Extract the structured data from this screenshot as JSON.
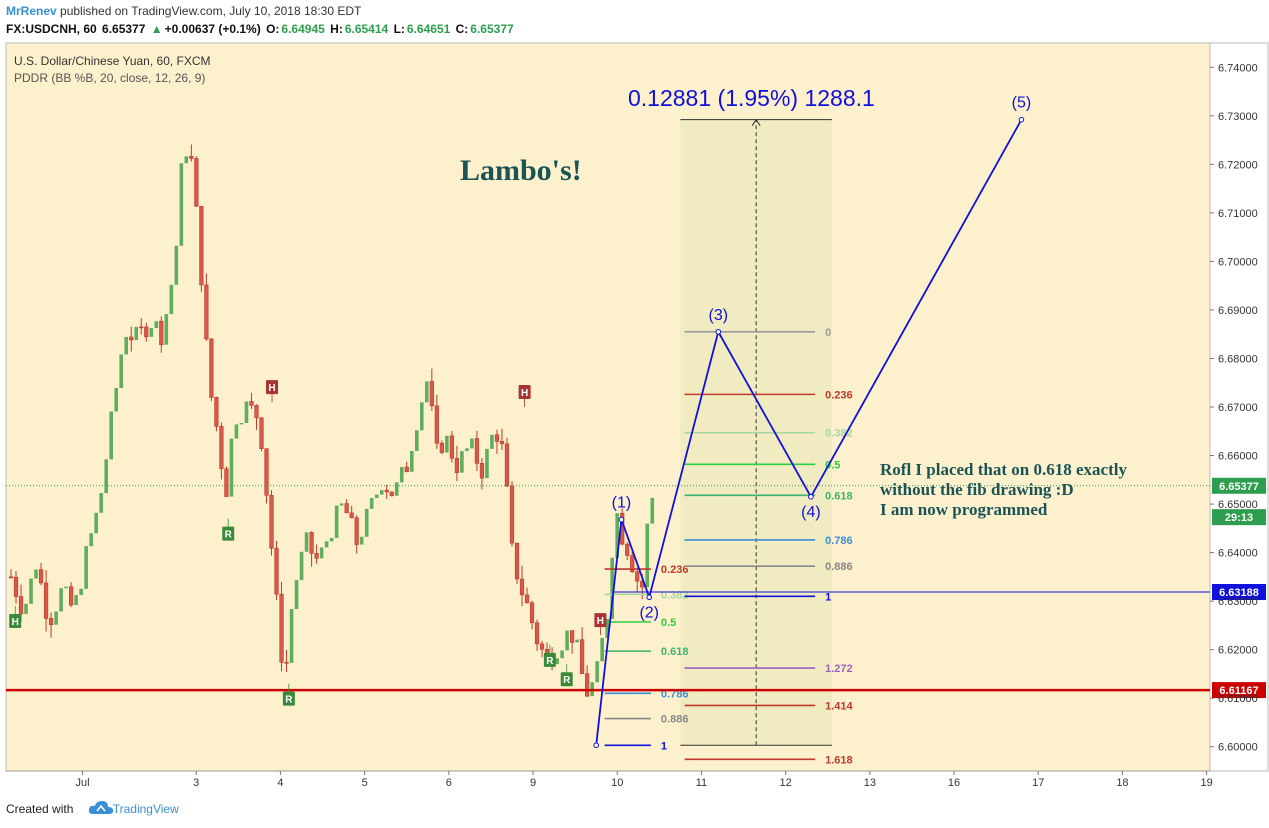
{
  "header": {
    "author": "MrRenev",
    "published": "published on TradingView.com, July 10, 2018 18:30 EDT",
    "symbol": "FX:USDCNH, 60",
    "last": "6.65377",
    "change": "+0.00637 (+0.1%)",
    "o_label": "O:",
    "o": "6.64945",
    "h_label": "H:",
    "h": "6.65414",
    "l_label": "L:",
    "l": "6.64651",
    "c_label": "C:",
    "c": "6.65377"
  },
  "legend": {
    "line1": "U.S. Dollar/Chinese Yuan, 60, FXCM",
    "line2": "PDDR (BB %B, 20, close, 12, 26, 9)"
  },
  "annotations": {
    "lambo": "Lambo's!",
    "measure": "0.12881 (1.95%) 1288.1",
    "note": [
      "Rofl I placed that on 0.618 exactly",
      "without the fib drawing :D",
      "I am now programmed"
    ]
  },
  "footer": {
    "created": "Created with",
    "brand": "TradingView"
  },
  "colors": {
    "bg": "#fdf0cc",
    "up": "#3a8a3a",
    "down": "#c0392b",
    "wave": "#1010dd",
    "support": "#cc0000",
    "last_price": "#2e9e4e",
    "crosshair": "#1010dd"
  },
  "chart_data": {
    "type": "candlestick",
    "ylim": [
      6.595,
      6.745
    ],
    "y_ticks": [
      "6.60000",
      "6.61000",
      "6.62000",
      "6.63000",
      "6.64000",
      "6.65000",
      "6.66000",
      "6.67000",
      "6.68000",
      "6.69000",
      "6.70000",
      "6.71000",
      "6.72000",
      "6.73000",
      "6.74000"
    ],
    "x_ticks": [
      "Jul",
      "3",
      "4",
      "5",
      "6",
      "9",
      "10",
      "11",
      "12",
      "13",
      "16",
      "17",
      "18",
      "19"
    ],
    "price_labels": [
      {
        "text": "6.65377",
        "value": 6.65377,
        "color": "#2e9e4e"
      },
      {
        "text": "29:13",
        "value": 6.6473,
        "color": "#2e9e4e"
      },
      {
        "text": "6.63188",
        "value": 6.63188,
        "color": "#1010dd"
      },
      {
        "text": "6.61167",
        "value": 6.61167,
        "color": "#cc0000"
      }
    ],
    "close_path": [
      {
        "d": 0.0,
        "p": 6.635
      },
      {
        "d": 0.15,
        "p": 6.628
      },
      {
        "d": 0.3,
        "p": 6.638
      },
      {
        "d": 0.45,
        "p": 6.626
      },
      {
        "d": 0.6,
        "p": 6.632
      },
      {
        "d": 0.75,
        "p": 6.628
      },
      {
        "d": 0.9,
        "p": 6.64
      },
      {
        "d": 1.05,
        "p": 6.65
      },
      {
        "d": 1.2,
        "p": 6.668
      },
      {
        "d": 1.35,
        "p": 6.686
      },
      {
        "d": 1.5,
        "p": 6.684
      },
      {
        "d": 1.65,
        "p": 6.688
      },
      {
        "d": 1.8,
        "p": 6.685
      },
      {
        "d": 1.95,
        "p": 6.7
      },
      {
        "d": 2.05,
        "p": 6.725
      },
      {
        "d": 2.15,
        "p": 6.72
      },
      {
        "d": 2.25,
        "p": 6.7
      },
      {
        "d": 2.35,
        "p": 6.675
      },
      {
        "d": 2.45,
        "p": 6.665
      },
      {
        "d": 2.55,
        "p": 6.652
      },
      {
        "d": 2.65,
        "p": 6.668
      },
      {
        "d": 2.8,
        "p": 6.67
      },
      {
        "d": 2.95,
        "p": 6.668
      },
      {
        "d": 3.05,
        "p": 6.65
      },
      {
        "d": 3.15,
        "p": 6.63
      },
      {
        "d": 3.25,
        "p": 6.613
      },
      {
        "d": 3.35,
        "p": 6.632
      },
      {
        "d": 3.5,
        "p": 6.642
      },
      {
        "d": 3.65,
        "p": 6.638
      },
      {
        "d": 3.8,
        "p": 6.645
      },
      {
        "d": 3.95,
        "p": 6.65
      },
      {
        "d": 4.1,
        "p": 6.642
      },
      {
        "d": 4.25,
        "p": 6.648
      },
      {
        "d": 4.4,
        "p": 6.655
      },
      {
        "d": 4.55,
        "p": 6.652
      },
      {
        "d": 4.7,
        "p": 6.658
      },
      {
        "d": 4.85,
        "p": 6.67
      },
      {
        "d": 4.95,
        "p": 6.676
      },
      {
        "d": 5.05,
        "p": 6.66
      },
      {
        "d": 5.15,
        "p": 6.664
      },
      {
        "d": 5.3,
        "p": 6.658
      },
      {
        "d": 5.45,
        "p": 6.662
      },
      {
        "d": 5.6,
        "p": 6.657
      },
      {
        "d": 5.75,
        "p": 6.666
      },
      {
        "d": 5.85,
        "p": 6.66
      },
      {
        "d": 5.95,
        "p": 6.64
      },
      {
        "d": 6.05,
        "p": 6.633
      },
      {
        "d": 6.15,
        "p": 6.628
      },
      {
        "d": 6.25,
        "p": 6.622
      },
      {
        "d": 6.35,
        "p": 6.618
      },
      {
        "d": 6.45,
        "p": 6.62
      },
      {
        "d": 6.55,
        "p": 6.622
      },
      {
        "d": 6.65,
        "p": 6.624
      },
      {
        "d": 6.75,
        "p": 6.618
      },
      {
        "d": 6.82,
        "p": 6.611
      },
      {
        "d": 6.88,
        "p": 6.612
      },
      {
        "d": 6.95,
        "p": 6.614
      },
      {
        "d": 7.0,
        "p": 6.62
      },
      {
        "d": 7.07,
        "p": 6.625
      },
      {
        "d": 7.13,
        "p": 6.64
      },
      {
        "d": 7.2,
        "p": 6.648
      },
      {
        "d": 7.27,
        "p": 6.643
      },
      {
        "d": 7.35,
        "p": 6.64
      },
      {
        "d": 7.42,
        "p": 6.635
      },
      {
        "d": 7.5,
        "p": 6.633
      },
      {
        "d": 7.57,
        "p": 6.648
      },
      {
        "d": 7.65,
        "p": 6.654
      }
    ],
    "pivots": [
      {
        "label": "H",
        "d": 0.05,
        "p": 6.629,
        "pos": "below",
        "color": "#3a8a3a"
      },
      {
        "label": "R",
        "d": 2.58,
        "p": 6.647,
        "pos": "below",
        "color": "#3a8a3a"
      },
      {
        "label": "H",
        "d": 3.1,
        "p": 6.671,
        "pos": "above",
        "color": "#a33"
      },
      {
        "label": "R",
        "d": 3.3,
        "p": 6.613,
        "pos": "below",
        "color": "#3a8a3a"
      },
      {
        "label": "H",
        "d": 6.1,
        "p": 6.67,
        "pos": "above",
        "color": "#a33"
      },
      {
        "label": "R",
        "d": 6.4,
        "p": 6.621,
        "pos": "below",
        "color": "#3a8a3a"
      },
      {
        "label": "R",
        "d": 6.6,
        "p": 6.617,
        "pos": "below",
        "color": "#3a8a3a"
      },
      {
        "label": "H",
        "d": 7.0,
        "p": 6.623,
        "pos": "above",
        "color": "#a33"
      }
    ],
    "wave": {
      "points": [
        {
          "d": 6.95,
          "p": 6.6003
        },
        {
          "d": 7.25,
          "p": 6.6468
        },
        {
          "d": 7.58,
          "p": 6.6308
        },
        {
          "d": 8.4,
          "p": 6.6855
        },
        {
          "d": 9.5,
          "p": 6.6515
        },
        {
          "d": 12.0,
          "p": 6.7292
        }
      ],
      "labels": [
        "(1)",
        "(2)",
        "(3)",
        "(4)",
        "(5)"
      ]
    },
    "fib_small": {
      "d_start": 7.05,
      "d_end": 7.6,
      "levels": [
        {
          "label": "0.236",
          "p": 6.6366,
          "color": "#c0392b"
        },
        {
          "label": "0.382",
          "p": 6.6314,
          "color": "#a7d7a0"
        },
        {
          "label": "0.5",
          "p": 6.6257,
          "color": "#2ecc40"
        },
        {
          "label": "0.618",
          "p": 6.6197,
          "color": "#3cb371"
        },
        {
          "label": "0.786",
          "p": 6.611,
          "color": "#3a8fd6"
        },
        {
          "label": "0.886",
          "p": 6.6058,
          "color": "#888888"
        },
        {
          "label": "1",
          "p": 6.6003,
          "color": "#1010dd"
        }
      ]
    },
    "fib_big": {
      "d_start": 8.0,
      "d_end": 9.55,
      "levels": [
        {
          "label": "0",
          "p": 6.6855,
          "color": "#999999"
        },
        {
          "label": "0.236",
          "p": 6.6726,
          "color": "#c0392b"
        },
        {
          "label": "0.382",
          "p": 6.6647,
          "color": "#a7d7a0"
        },
        {
          "label": "0.5",
          "p": 6.6582,
          "color": "#2ecc40"
        },
        {
          "label": "0.618",
          "p": 6.6518,
          "color": "#3cb371"
        },
        {
          "label": "0.786",
          "p": 6.6426,
          "color": "#3a8fd6"
        },
        {
          "label": "0.886",
          "p": 6.6372,
          "color": "#888888"
        },
        {
          "label": "1",
          "p": 6.631,
          "color": "#1010dd"
        },
        {
          "label": "1.272",
          "p": 6.6162,
          "color": "#a060c0"
        },
        {
          "label": "1.414",
          "p": 6.6085,
          "color": "#c0392b"
        },
        {
          "label": "1.618",
          "p": 6.5974,
          "color": "#c0392b"
        }
      ]
    },
    "measure_box": {
      "d_start": 7.95,
      "d_end": 9.75,
      "p_low": 6.6003,
      "p_high": 6.7292
    },
    "support_level": 6.61167,
    "crosshair_level": 6.63188,
    "last_price": 6.65377
  }
}
